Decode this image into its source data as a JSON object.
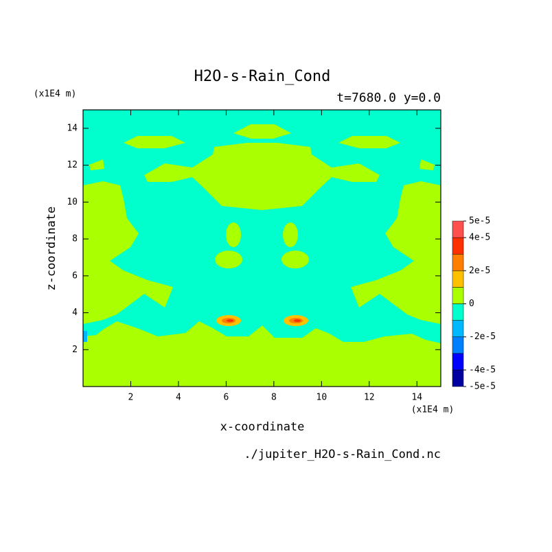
{
  "chart_data": {
    "type": "contour",
    "title": "H2O-s-Rain_Cond",
    "subtitle": "t=7680.0 y=0.0",
    "x_label": "x-coordinate",
    "y_label": "z-coordinate",
    "x_unit": "(x1E4 m)",
    "y_unit": "(x1E4 m)",
    "source": "./jupiter_H2O-s-Rain_Cond.nc",
    "xlim": [
      0,
      15
    ],
    "ylim": [
      0,
      15
    ],
    "xticks": [
      2,
      4,
      6,
      8,
      10,
      12,
      14
    ],
    "yticks": [
      2,
      4,
      6,
      8,
      10,
      12,
      14
    ],
    "colorbar": {
      "levels": [
        -5e-05,
        -4e-05,
        -3e-05,
        -2e-05,
        -1e-05,
        0,
        1e-05,
        2e-05,
        3e-05,
        4e-05,
        5e-05
      ],
      "colors": [
        "#0000a0",
        "#0000ff",
        "#0080ff",
        "#00b8ff",
        "#00ffcc",
        "#aaff00",
        "#ffc000",
        "#ff8000",
        "#ff3000",
        "#ff5050"
      ],
      "ticks": [
        {
          "value": 5e-05,
          "label": "5e-5"
        },
        {
          "value": 4e-05,
          "label": "4e-5"
        },
        {
          "value": 2e-05,
          "label": "2e-5"
        },
        {
          "value": 0,
          "label": "0"
        },
        {
          "value": -2e-05,
          "label": "-2e-5"
        },
        {
          "value": -4e-05,
          "label": "-4e-5"
        },
        {
          "value": -5e-05,
          "label": "-5e-5"
        }
      ]
    }
  }
}
